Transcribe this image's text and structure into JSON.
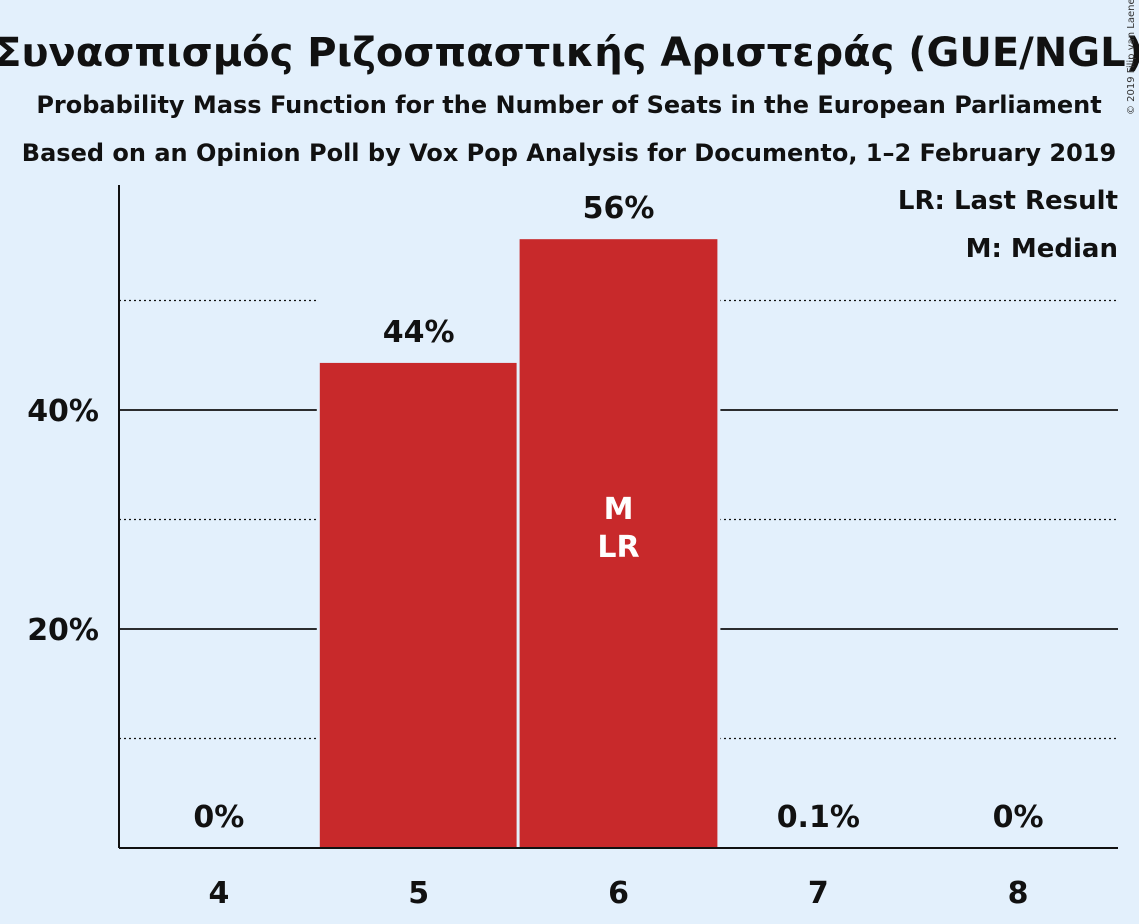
{
  "title": "Συνασπισμός Ριζοσπαστικής Αριστεράς (GUE/NGL)",
  "subtitle_1": "Probability Mass Function for the Number of Seats in the European Parliament",
  "subtitle_2": "Based on an Opinion Poll by Vox Pop Analysis for Documento, 1–2 February 2019",
  "copyright": "© 2019 Filip van Laenen",
  "legend": {
    "last_result": "LR: Last Result",
    "median": "M: Median"
  },
  "colors": {
    "bar": "#c8292b",
    "background": "#e3f0fc",
    "text": "#111111"
  },
  "chart_data": {
    "type": "bar",
    "categories": [
      "4",
      "5",
      "6",
      "7",
      "8"
    ],
    "values": [
      0,
      44.3,
      55.6,
      0.1,
      0
    ],
    "data_labels": [
      "0%",
      "44%",
      "56%",
      "0.1%",
      "0%"
    ],
    "bar_markers": [
      "",
      "",
      "M\nLR",
      "",
      ""
    ],
    "ylim": [
      0,
      60
    ],
    "y_major_ticks": [
      20,
      40
    ],
    "y_major_tick_labels": [
      "20%",
      "40%"
    ],
    "y_minor_gridlines": [
      10,
      30,
      50
    ],
    "grid": true,
    "legend_position": "top-right"
  }
}
